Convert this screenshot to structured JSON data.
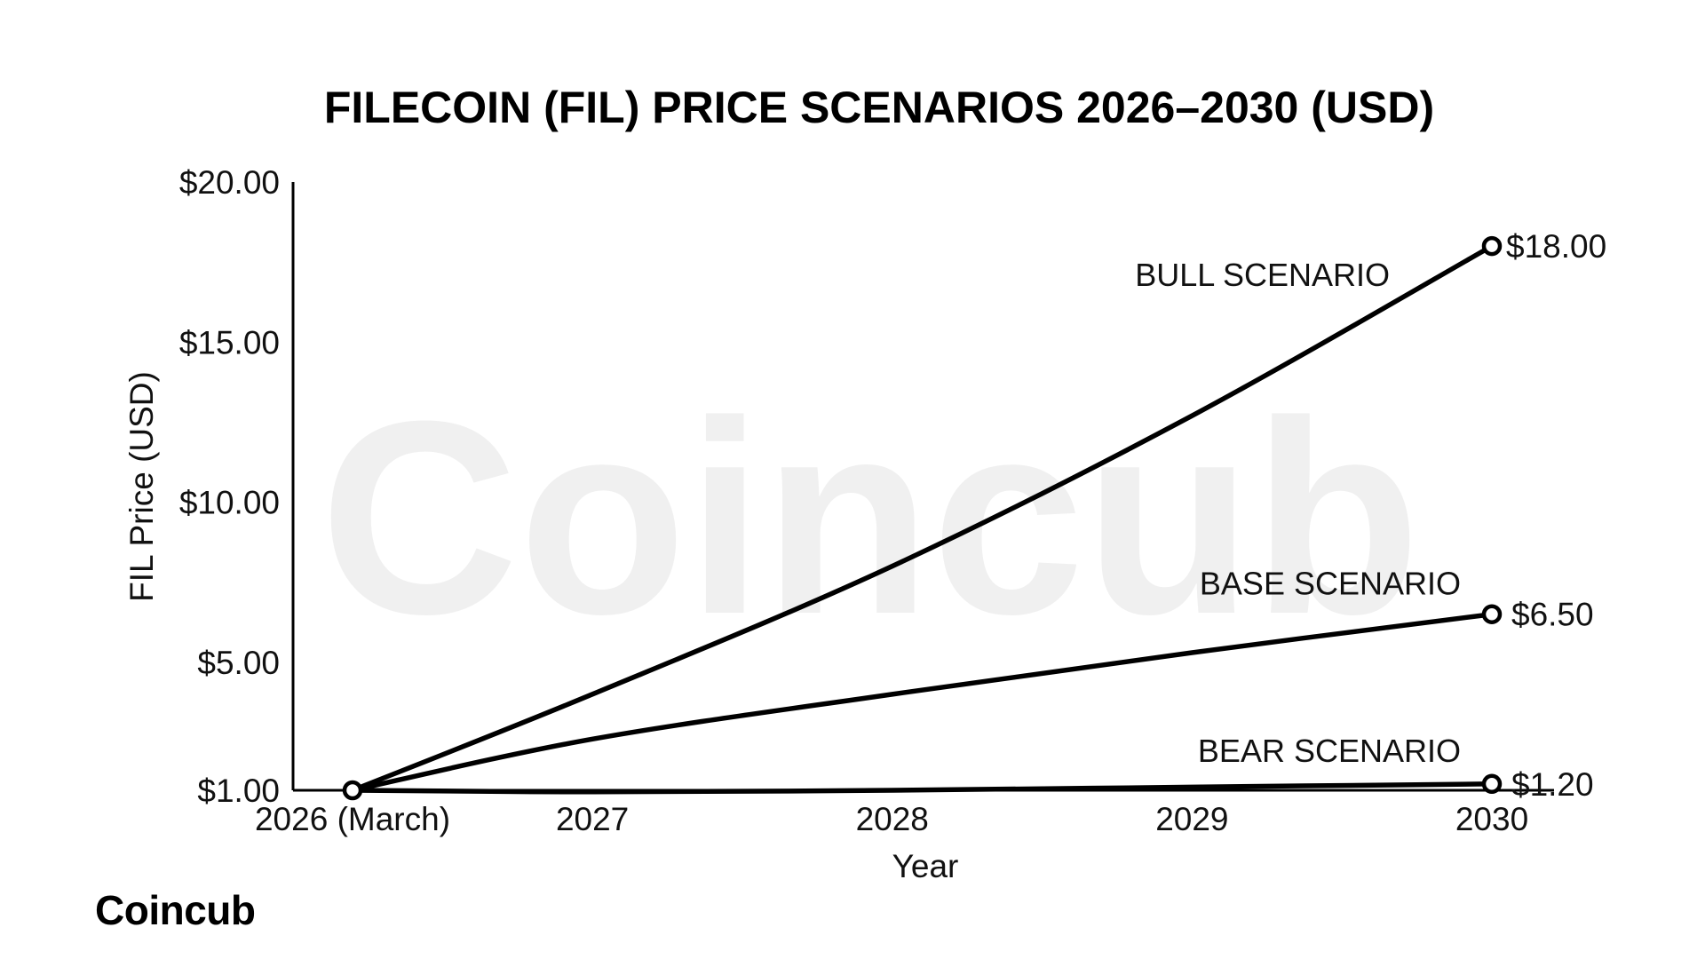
{
  "brand": {
    "logo_text": "Coincub",
    "watermark_text": "Coincub"
  },
  "colors": {
    "line": "#000000",
    "background": "#ffffff",
    "watermark": "#000000"
  },
  "chart_data": {
    "type": "line",
    "title": "FILECOIN (FIL) PRICE SCENARIOS 2026–2030 (USD)",
    "xlabel": "Year",
    "ylabel": "FIL Price (USD)",
    "x_ticks": [
      {
        "value": 2026.2,
        "label": "2026 (March)"
      },
      {
        "value": 2027,
        "label": "2027"
      },
      {
        "value": 2028,
        "label": "2028"
      },
      {
        "value": 2029,
        "label": "2029"
      },
      {
        "value": 2030,
        "label": "2030"
      }
    ],
    "xlim": [
      2026,
      2030.2
    ],
    "y_ticks": [
      {
        "value": 1,
        "label": "$1.00"
      },
      {
        "value": 5,
        "label": "$5.00"
      },
      {
        "value": 10,
        "label": "$10.00"
      },
      {
        "value": 15,
        "label": "$15.00"
      },
      {
        "value": 20,
        "label": "$20.00"
      }
    ],
    "ylim": [
      1,
      20
    ],
    "grid": false,
    "legend": "none",
    "series": [
      {
        "name": "BULL SCENARIO",
        "end_label": "$18.00",
        "x": [
          2026.2,
          2027,
          2028,
          2029,
          2030
        ],
        "y": [
          1.0,
          4.0,
          8.0,
          12.7,
          18.0
        ]
      },
      {
        "name": "BASE SCENARIO",
        "end_label": "$6.50",
        "x": [
          2026.2,
          2027,
          2028,
          2029,
          2030
        ],
        "y": [
          1.0,
          2.6,
          4.0,
          5.3,
          6.5
        ]
      },
      {
        "name": "BEAR SCENARIO",
        "end_label": "$1.20",
        "x": [
          2026.2,
          2027,
          2028,
          2029,
          2030
        ],
        "y": [
          1.0,
          0.95,
          1.0,
          1.1,
          1.2
        ]
      }
    ]
  }
}
